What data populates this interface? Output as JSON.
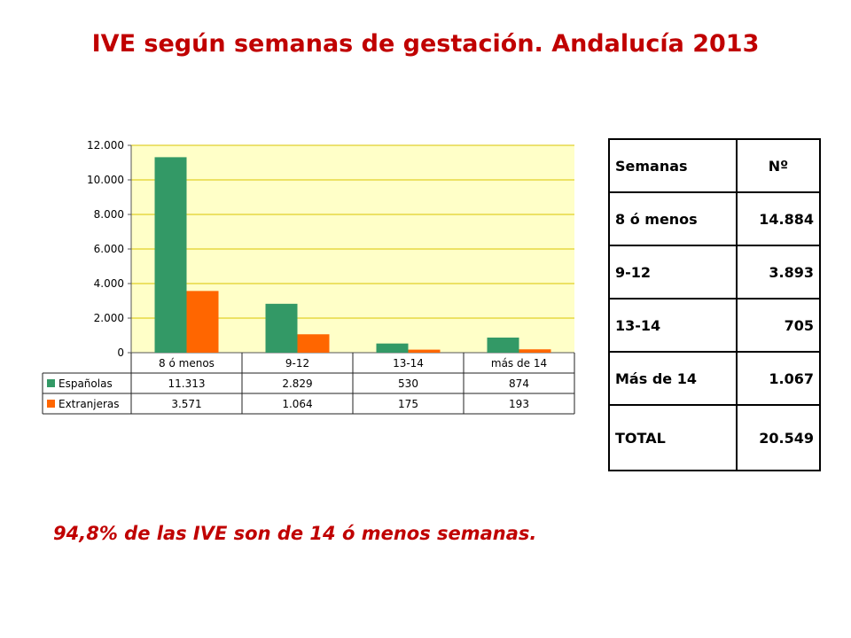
{
  "title": "IVE según semanas de gestación. Andalucía 2013",
  "colors": {
    "title": "#c00000",
    "plot_background": "#ffffc8",
    "gridline": "#d9c400",
    "espanolas": "#339966",
    "extranjeras": "#ff6600"
  },
  "chart_data": {
    "type": "bar",
    "categories": [
      "8 ó menos",
      "9-12",
      "13-14",
      "más de 14"
    ],
    "series": [
      {
        "name": "Españolas",
        "values": [
          11313,
          2829,
          530,
          874
        ],
        "labels": [
          "11.313",
          "2.829",
          "530",
          "874"
        ]
      },
      {
        "name": "Extranjeras",
        "values": [
          3571,
          1064,
          175,
          193
        ],
        "labels": [
          "3.571",
          "1.064",
          "175",
          "193"
        ]
      }
    ],
    "ylim": [
      0,
      12000
    ],
    "yticks": [
      0,
      2000,
      4000,
      6000,
      8000,
      10000,
      12000
    ],
    "ytick_labels": [
      "0",
      "2.000",
      "4.000",
      "6.000",
      "8.000",
      "10.000",
      "12.000"
    ],
    "grid": true,
    "legend": "data-table-below"
  },
  "table": {
    "headers": [
      "Semanas",
      "Nº"
    ],
    "rows": [
      [
        "8 ó menos",
        "14.884"
      ],
      [
        "9-12",
        "3.893"
      ],
      [
        "13-14",
        "705"
      ],
      [
        "Más de 14",
        "1.067"
      ],
      [
        "TOTAL",
        "20.549"
      ]
    ]
  },
  "footnote": "94,8% de las IVE son de 14 ó menos semanas."
}
